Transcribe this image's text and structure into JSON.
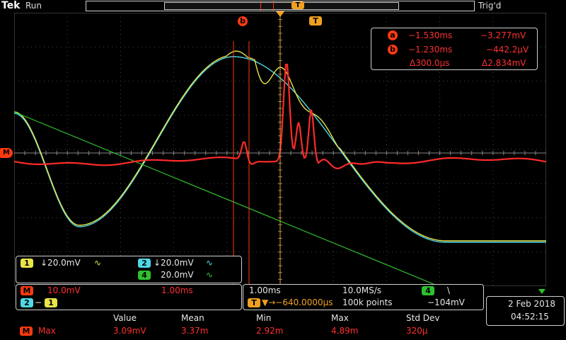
{
  "header": {
    "brand": "Tek",
    "run_status": "Run",
    "trigger_status": "Trig'd",
    "trigger_marker": "T"
  },
  "cursors": {
    "a": {
      "label": "a",
      "time": "−1.530ms",
      "value": "−3.277mV"
    },
    "b": {
      "label": "b",
      "time": "−1.230ms",
      "value": "−442.2µV"
    },
    "delta_time": "Δ300.0µs",
    "delta_value": "Δ2.834mV",
    "b_marker": "b",
    "t_marker": "T"
  },
  "waveforms": {
    "ch1_color": "#e8e44a",
    "ch2_color": "#4fd7e6",
    "math_color": "#ff2a2a",
    "ch4_color": "#2fc02f"
  },
  "math_marker": "M",
  "channels": {
    "ch1": {
      "label": "1",
      "scale": "↓20.0mV",
      "coupling": "∿"
    },
    "ch2": {
      "label": "2",
      "scale": "↓20.0mV",
      "coupling": "∿"
    },
    "ch4": {
      "label": "4",
      "scale": "20.0mV",
      "coupling": "∿"
    }
  },
  "math": {
    "label": "M",
    "scale": "10.0mV",
    "time": "1.00ms",
    "source_a": "2",
    "source_b": "1"
  },
  "timebase": {
    "horizontal_scale": "1.00ms",
    "sample_rate": "10.0MS/s",
    "trigger_label": "T",
    "trigger_position": "▼→−640.0000µs",
    "record_length": "100k points",
    "trigger_channel": "4",
    "trigger_slope": "\\",
    "trigger_level": "−104mV"
  },
  "datetime": {
    "date": "2 Feb  2018",
    "time": "04:52:15"
  },
  "measurements": {
    "headers": [
      "Value",
      "Mean",
      "Min",
      "Max",
      "Std Dev"
    ],
    "rows": [
      {
        "source": "M",
        "type": "Max",
        "values": [
          "3.09mV",
          "3.37m",
          "2.92m",
          "4.89m",
          "320µ"
        ]
      }
    ]
  }
}
